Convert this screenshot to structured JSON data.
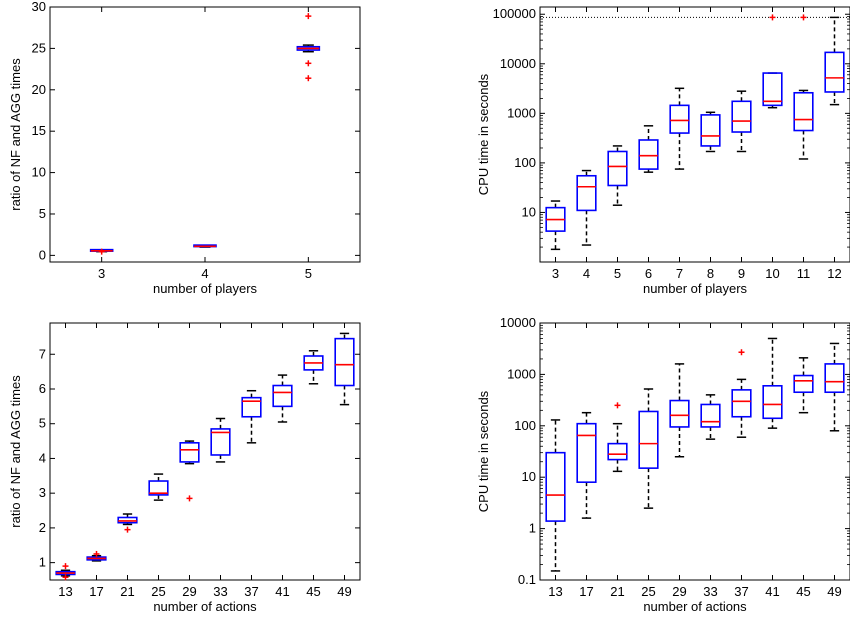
{
  "chart_data": [
    {
      "type": "box",
      "xlabel": "number of players",
      "ylabel": "ratio of NF and AGG times",
      "categories": [
        "3",
        "4",
        "5"
      ],
      "y_scale": "linear",
      "ylim": [
        -0.8,
        30
      ],
      "yticks": [
        0,
        5,
        10,
        15,
        20,
        25,
        30
      ],
      "ytick_labels": [
        "0",
        "5",
        "10",
        "15",
        "20",
        "25",
        "30"
      ],
      "boxes": [
        {
          "whisker_low": 0.45,
          "q1": 0.5,
          "median": 0.55,
          "q3": 0.6,
          "whisker_high": 0.65,
          "outliers": [
            0.45
          ]
        },
        {
          "whisker_low": 1.0,
          "q1": 1.05,
          "median": 1.1,
          "q3": 1.15,
          "whisker_high": 1.2,
          "outliers": []
        },
        {
          "whisker_low": 24.6,
          "q1": 24.8,
          "median": 25.0,
          "q3": 25.2,
          "whisker_high": 25.4,
          "outliers": [
            28.9,
            23.2,
            21.4
          ]
        }
      ]
    },
    {
      "type": "box",
      "xlabel": "number of players",
      "ylabel": "CPU time in seconds",
      "categories": [
        "3",
        "4",
        "5",
        "6",
        "7",
        "8",
        "9",
        "10",
        "11",
        "12"
      ],
      "y_scale": "log",
      "ylim": [
        1,
        140000
      ],
      "yticks": [
        10,
        100,
        1000,
        10000,
        100000
      ],
      "ytick_labels": [
        "10",
        "100",
        "1000",
        "10000",
        "100000"
      ],
      "reference_line": 86400,
      "boxes": [
        {
          "whisker_low": 1.8,
          "q1": 4.2,
          "median": 7.2,
          "q3": 12.5,
          "whisker_high": 17,
          "outliers": []
        },
        {
          "whisker_low": 2.2,
          "q1": 11,
          "median": 33,
          "q3": 55,
          "whisker_high": 70,
          "outliers": []
        },
        {
          "whisker_low": 14,
          "q1": 35,
          "median": 85,
          "q3": 170,
          "whisker_high": 220,
          "outliers": []
        },
        {
          "whisker_low": 65,
          "q1": 75,
          "median": 140,
          "q3": 290,
          "whisker_high": 560,
          "outliers": []
        },
        {
          "whisker_low": 75,
          "q1": 400,
          "median": 720,
          "q3": 1450,
          "whisker_high": 3200,
          "outliers": []
        },
        {
          "whisker_low": 170,
          "q1": 220,
          "median": 350,
          "q3": 930,
          "whisker_high": 1050,
          "outliers": []
        },
        {
          "whisker_low": 170,
          "q1": 420,
          "median": 700,
          "q3": 1750,
          "whisker_high": 2800,
          "outliers": []
        },
        {
          "whisker_low": 1300,
          "q1": 1450,
          "median": 1750,
          "q3": 6500,
          "whisker_high": 6500,
          "outliers": [
            86400
          ]
        },
        {
          "whisker_low": 120,
          "q1": 450,
          "median": 750,
          "q3": 2600,
          "whisker_high": 2900,
          "outliers": [
            86400
          ]
        },
        {
          "whisker_low": 1500,
          "q1": 2700,
          "median": 5200,
          "q3": 17000,
          "whisker_high": 86400,
          "outliers": []
        }
      ]
    },
    {
      "type": "box",
      "xlabel": "number of actions",
      "ylabel": "ratio of NF and AGG times",
      "categories": [
        "13",
        "17",
        "21",
        "25",
        "29",
        "33",
        "37",
        "41",
        "45",
        "49"
      ],
      "y_scale": "linear",
      "ylim": [
        0.5,
        7.9
      ],
      "yticks": [
        1,
        2,
        3,
        4,
        5,
        6,
        7
      ],
      "ytick_labels": [
        "1",
        "2",
        "3",
        "4",
        "5",
        "6",
        "7"
      ],
      "boxes": [
        {
          "whisker_low": 0.62,
          "q1": 0.66,
          "median": 0.7,
          "q3": 0.74,
          "whisker_high": 0.78,
          "outliers": [
            0.9,
            0.58
          ]
        },
        {
          "whisker_low": 1.05,
          "q1": 1.08,
          "median": 1.12,
          "q3": 1.16,
          "whisker_high": 1.2,
          "outliers": [
            1.25
          ]
        },
        {
          "whisker_low": 2.1,
          "q1": 2.15,
          "median": 2.2,
          "q3": 2.3,
          "whisker_high": 2.4,
          "outliers": [
            1.95
          ]
        },
        {
          "whisker_low": 2.8,
          "q1": 2.95,
          "median": 3.0,
          "q3": 3.35,
          "whisker_high": 3.55,
          "outliers": []
        },
        {
          "whisker_low": 3.85,
          "q1": 3.9,
          "median": 4.25,
          "q3": 4.45,
          "whisker_high": 4.5,
          "outliers": [
            2.85
          ]
        },
        {
          "whisker_low": 3.9,
          "q1": 4.1,
          "median": 4.75,
          "q3": 4.85,
          "whisker_high": 5.15,
          "outliers": []
        },
        {
          "whisker_low": 4.45,
          "q1": 5.2,
          "median": 5.65,
          "q3": 5.75,
          "whisker_high": 5.95,
          "outliers": []
        },
        {
          "whisker_low": 5.05,
          "q1": 5.5,
          "median": 5.9,
          "q3": 6.1,
          "whisker_high": 6.4,
          "outliers": []
        },
        {
          "whisker_low": 6.15,
          "q1": 6.55,
          "median": 6.75,
          "q3": 6.95,
          "whisker_high": 7.1,
          "outliers": []
        },
        {
          "whisker_low": 5.55,
          "q1": 6.1,
          "median": 6.7,
          "q3": 7.45,
          "whisker_high": 7.6,
          "outliers": []
        }
      ]
    },
    {
      "type": "box",
      "xlabel": "number of actions",
      "ylabel": "CPU time in seconds",
      "categories": [
        "13",
        "17",
        "21",
        "25",
        "29",
        "33",
        "37",
        "41",
        "45",
        "49"
      ],
      "y_scale": "log",
      "ylim": [
        0.1,
        10000
      ],
      "yticks": [
        0.1,
        1,
        10,
        100,
        1000,
        10000
      ],
      "ytick_labels": [
        "0.1",
        "1",
        "10",
        "100",
        "1000",
        "10000"
      ],
      "boxes": [
        {
          "whisker_low": 0.15,
          "q1": 1.4,
          "median": 4.5,
          "q3": 30,
          "whisker_high": 130,
          "outliers": []
        },
        {
          "whisker_low": 1.6,
          "q1": 8,
          "median": 65,
          "q3": 110,
          "whisker_high": 180,
          "outliers": []
        },
        {
          "whisker_low": 13,
          "q1": 22,
          "median": 28,
          "q3": 45,
          "whisker_high": 110,
          "outliers": [
            250
          ]
        },
        {
          "whisker_low": 2.5,
          "q1": 15,
          "median": 45,
          "q3": 190,
          "whisker_high": 520,
          "outliers": []
        },
        {
          "whisker_low": 25,
          "q1": 95,
          "median": 160,
          "q3": 310,
          "whisker_high": 1600,
          "outliers": []
        },
        {
          "whisker_low": 55,
          "q1": 95,
          "median": 120,
          "q3": 260,
          "whisker_high": 400,
          "outliers": []
        },
        {
          "whisker_low": 60,
          "q1": 150,
          "median": 300,
          "q3": 500,
          "whisker_high": 800,
          "outliers": [
            2700
          ]
        },
        {
          "whisker_low": 90,
          "q1": 140,
          "median": 260,
          "q3": 600,
          "whisker_high": 5000,
          "outliers": []
        },
        {
          "whisker_low": 180,
          "q1": 450,
          "median": 750,
          "q3": 950,
          "whisker_high": 2100,
          "outliers": []
        },
        {
          "whisker_low": 80,
          "q1": 450,
          "median": 720,
          "q3": 1600,
          "whisker_high": 4000,
          "outliers": []
        }
      ]
    }
  ],
  "colors": {
    "box": "#0000ff",
    "median": "#ff0000",
    "whisker": "#000000",
    "outlier": "#ff0000"
  }
}
